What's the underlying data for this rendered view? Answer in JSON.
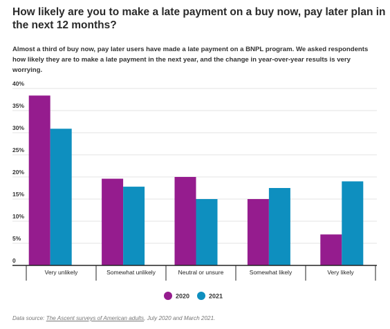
{
  "header": {
    "title": "How likely are you to make a late payment on a buy now, pay later plan in the next 12 months?",
    "subtitle": "Almost a third of buy now, pay later users have made a late payment on a BNPL program. We asked respondents how likely they are to make a late payment in the next year, and the change in year-over-year results is very worrying."
  },
  "footer": {
    "prefix": "Data source: ",
    "link_text": "The Ascent surveys of American adults",
    "suffix": ", July 2020 and March 2021."
  },
  "chart_data": {
    "type": "bar",
    "title": "How likely are you to make a late payment on a buy now, pay later plan in the next 12 months?",
    "xlabel": "",
    "ylabel": "",
    "categories": [
      "Very unlikely",
      "Somewhat unlikely",
      "Neutral or unsure",
      "Somewhat likely",
      "Very likely"
    ],
    "series": [
      {
        "name": "2020",
        "color": "#951c8e",
        "values": [
          38.4,
          19.6,
          20.0,
          15.0,
          7.0
        ]
      },
      {
        "name": "2021",
        "color": "#0e8fbf",
        "values": [
          30.9,
          17.8,
          15.0,
          17.5,
          19.0
        ]
      }
    ],
    "yticks": [
      "0",
      "5%",
      "10%",
      "15%",
      "20%",
      "25%",
      "30%",
      "35%",
      "40%"
    ],
    "ytick_values": [
      0,
      5,
      10,
      15,
      20,
      25,
      30,
      35,
      40
    ],
    "ylim": [
      0,
      40
    ],
    "grid": true,
    "legend": "bottom-center"
  }
}
